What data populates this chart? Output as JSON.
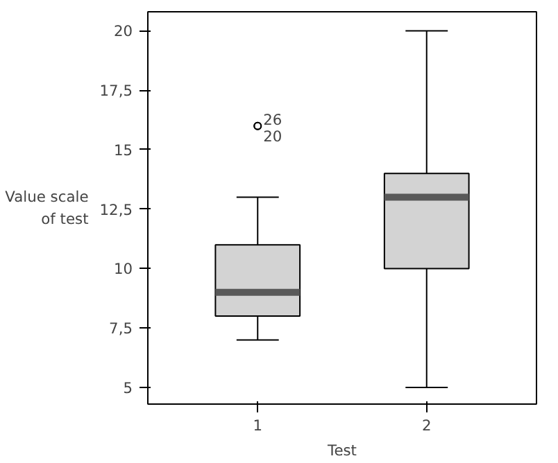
{
  "chart_data": {
    "type": "box",
    "xlabel": "Test",
    "ylabel": "Value scale\nof test",
    "categories": [
      "1",
      "2"
    ],
    "boxes": [
      {
        "low": 7,
        "q1": 8,
        "median": 9,
        "q3": 11,
        "high": 13,
        "outliers": [
          16,
          16
        ]
      },
      {
        "low": 5,
        "q1": 10,
        "median": 13,
        "q3": 14,
        "high": 20
      }
    ],
    "color": "#d3d3d3",
    "ylim": [
      4.3,
      20.8
    ],
    "yticks": [
      5,
      {
        "value": 7.5,
        "label": "7,5"
      },
      10,
      {
        "value": 12.5,
        "label": "12,5"
      },
      15,
      {
        "value": 17.5,
        "label": "17,5"
      },
      20
    ],
    "annotations": [
      "26",
      "20"
    ],
    "grid": false
  }
}
